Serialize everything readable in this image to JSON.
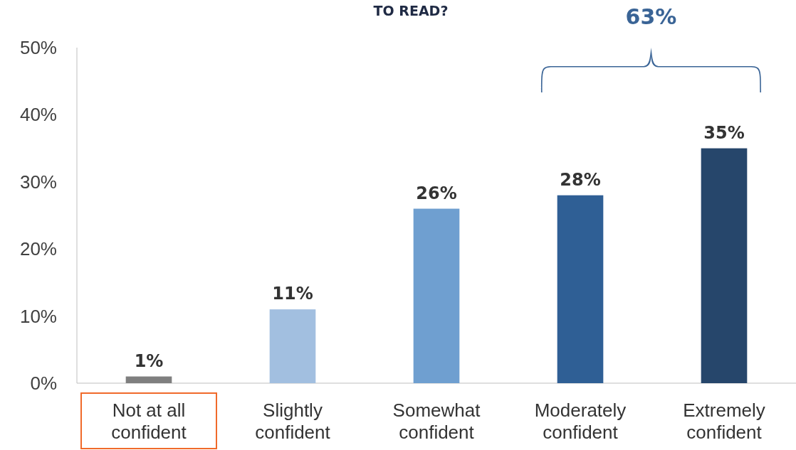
{
  "chart_data": {
    "type": "bar",
    "title": "TO READ?",
    "categories": [
      "Not at all confident",
      "Slightly confident",
      "Somewhat confident",
      "Moderately confident",
      "Extremely confident"
    ],
    "values": [
      1,
      11,
      26,
      28,
      35
    ],
    "colors": [
      "#7f7f7f",
      "#a2bfe0",
      "#6f9fd0",
      "#2f5f95",
      "#26466b"
    ],
    "ylim": [
      0,
      50
    ],
    "yticks": [
      {
        "value": 0,
        "label": "0%"
      },
      {
        "value": 10,
        "label": "10%"
      },
      {
        "value": 20,
        "label": "20%"
      },
      {
        "value": 30,
        "label": "30%"
      },
      {
        "value": 40,
        "label": "40%"
      },
      {
        "value": 50,
        "label": "50%"
      }
    ],
    "value_labels": [
      "1%",
      "11%",
      "26%",
      "28%",
      "35%"
    ],
    "annotations": [
      "63%"
    ]
  }
}
